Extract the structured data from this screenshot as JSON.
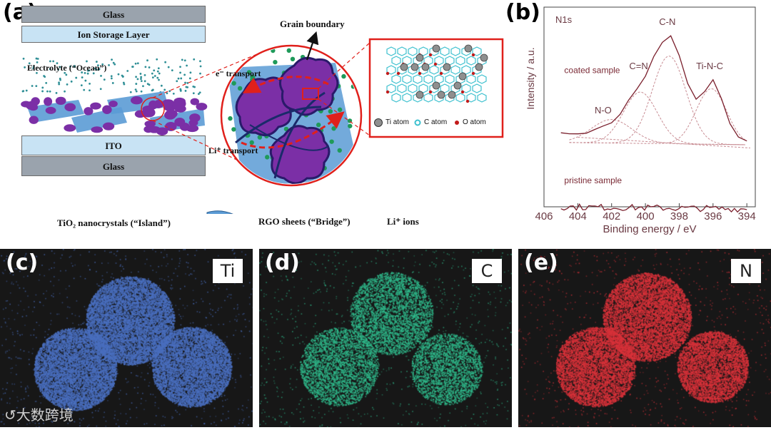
{
  "panel_a": {
    "label": "(a)",
    "layers": {
      "glass_top": "Glass",
      "ion_storage": "Ion Storage Layer",
      "ito": "ITO",
      "glass_bottom": "Glass"
    },
    "electrolyte_label": "Electrolyte (“Ocean”)",
    "grain_boundary": "Grain boundary",
    "e_transport": "e⁻ transport",
    "li_transport": "Li⁺ transport",
    "atom_legend": {
      "ti": "Ti atom",
      "c": "C atom",
      "o": "O atom"
    },
    "legend": {
      "tio2": "TiO₂ nanocrystals (“Island”)",
      "rgo": "RGO sheets (“Bridge”)",
      "li": "Li⁺ ions"
    },
    "colors": {
      "tio2": "#7b2fa6",
      "rgo": "#4f8fcf",
      "li": "#1f9a5a",
      "red": "#e0201b",
      "glass": "#9aa3ad",
      "blue_layer": "#c8e3f4"
    }
  },
  "chart_data": {
    "type": "line",
    "panel_label": "(b)",
    "title": "N1s",
    "xlabel": "Binding energy / eV",
    "ylabel": "Intensity / a.u.",
    "xlim": [
      406,
      393.5
    ],
    "x_reversed": true,
    "xticks": [
      406,
      404,
      402,
      400,
      398,
      396,
      394
    ],
    "series": [
      {
        "name": "coated sample",
        "x": [
          405,
          404.5,
          404,
          403.5,
          403,
          402.5,
          402,
          401.5,
          401,
          400.5,
          400,
          399.5,
          399,
          398.5,
          398,
          397.5,
          397,
          396.5,
          396,
          395.5,
          395,
          394.5,
          394
        ],
        "y": [
          0.08,
          0.07,
          0.1,
          0.09,
          0.12,
          0.15,
          0.2,
          0.28,
          0.4,
          0.52,
          0.63,
          0.8,
          0.95,
          0.98,
          0.8,
          0.55,
          0.42,
          0.48,
          0.58,
          0.42,
          0.18,
          0.06,
          0.02
        ]
      },
      {
        "name": "pristine sample",
        "x": [
          405,
          394
        ],
        "y": [
          -0.6,
          -0.62
        ]
      }
    ],
    "peak_labels": [
      "N-O",
      "C=N",
      "C-N",
      "Ti-N-C"
    ],
    "peak_positions": [
      402.5,
      400.4,
      398.7,
      396.2
    ],
    "curve_color": "#7a1f2c",
    "fit_color": "#c88c93"
  },
  "maps": [
    {
      "label": "(c)",
      "element": "Ti",
      "color": "#4a6fbf"
    },
    {
      "label": "(d)",
      "element": "C",
      "color": "#2fb88a"
    },
    {
      "label": "(e)",
      "element": "N",
      "color": "#d8323a"
    }
  ],
  "watermark": {
    "text": "大数跨境"
  }
}
